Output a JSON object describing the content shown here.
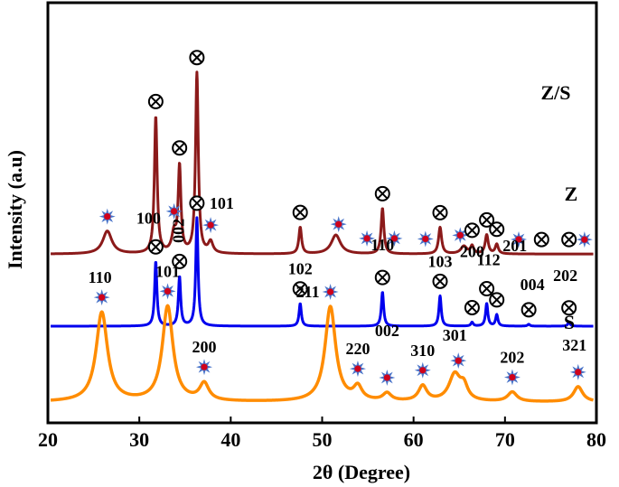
{
  "chart_data": {
    "type": "line",
    "title": "",
    "xlabel": "2θ (Degree)",
    "ylabel": "Intensity (a.u)",
    "xlim": [
      20,
      80
    ],
    "xticks": [
      20,
      30,
      40,
      50,
      60,
      70,
      80
    ],
    "grid": false,
    "legend": "series labels printed at right of each trace",
    "series": [
      {
        "name": "Z/S",
        "color": "#8b1a1a",
        "baseline": 0.78,
        "peaks": [
          {
            "x": 26.5,
            "h": 0.12,
            "w": 0.6
          },
          {
            "x": 31.8,
            "h": 0.72,
            "w": 0.18
          },
          {
            "x": 33.8,
            "h": 0.1,
            "w": 0.3
          },
          {
            "x": 34.4,
            "h": 0.45,
            "w": 0.18
          },
          {
            "x": 36.3,
            "h": 0.95,
            "w": 0.18
          },
          {
            "x": 37.8,
            "h": 0.06,
            "w": 0.3
          },
          {
            "x": 47.6,
            "h": 0.14,
            "w": 0.18
          },
          {
            "x": 51.5,
            "h": 0.1,
            "w": 0.6
          },
          {
            "x": 56.6,
            "h": 0.24,
            "w": 0.18
          },
          {
            "x": 62.9,
            "h": 0.14,
            "w": 0.2
          },
          {
            "x": 65.5,
            "h": 0.04,
            "w": 0.4
          },
          {
            "x": 66.4,
            "h": 0.04,
            "w": 0.2
          },
          {
            "x": 68.0,
            "h": 0.1,
            "w": 0.2
          },
          {
            "x": 69.1,
            "h": 0.05,
            "w": 0.2
          }
        ],
        "markers": [
          {
            "x": 26.5,
            "symbol": "star"
          },
          {
            "x": 31.8,
            "symbol": "otimes"
          },
          {
            "x": 33.8,
            "symbol": "star"
          },
          {
            "x": 34.4,
            "symbol": "otimes"
          },
          {
            "x": 36.3,
            "symbol": "otimes"
          },
          {
            "x": 37.8,
            "symbol": "star"
          },
          {
            "x": 47.6,
            "symbol": "otimes"
          },
          {
            "x": 51.8,
            "symbol": "star"
          },
          {
            "x": 54.9,
            "symbol": "star"
          },
          {
            "x": 56.6,
            "symbol": "otimes"
          },
          {
            "x": 57.9,
            "symbol": "star"
          },
          {
            "x": 61.3,
            "symbol": "star"
          },
          {
            "x": 62.9,
            "symbol": "otimes"
          },
          {
            "x": 65.1,
            "symbol": "star"
          },
          {
            "x": 66.4,
            "symbol": "otimes"
          },
          {
            "x": 68.0,
            "symbol": "otimes"
          },
          {
            "x": 69.1,
            "symbol": "otimes"
          },
          {
            "x": 71.5,
            "symbol": "star"
          },
          {
            "x": 74.0,
            "symbol": "otimes"
          },
          {
            "x": 77.0,
            "symbol": "otimes"
          },
          {
            "x": 78.7,
            "symbol": "star"
          }
        ]
      },
      {
        "name": "Z",
        "color": "#0000ee",
        "baseline": 0.4,
        "peaks": [
          {
            "x": 31.8,
            "h": 0.34,
            "w": 0.15
          },
          {
            "x": 34.4,
            "h": 0.26,
            "w": 0.15
          },
          {
            "x": 36.3,
            "h": 0.57,
            "w": 0.15
          },
          {
            "x": 47.6,
            "h": 0.12,
            "w": 0.15
          },
          {
            "x": 56.6,
            "h": 0.18,
            "w": 0.15
          },
          {
            "x": 62.9,
            "h": 0.16,
            "w": 0.15
          },
          {
            "x": 66.4,
            "h": 0.02,
            "w": 0.15
          },
          {
            "x": 68.0,
            "h": 0.12,
            "w": 0.15
          },
          {
            "x": 69.1,
            "h": 0.06,
            "w": 0.15
          },
          {
            "x": 72.6,
            "h": 0.01,
            "w": 0.15
          },
          {
            "x": 77.0,
            "h": 0.02,
            "w": 0.15
          }
        ],
        "markers": [
          {
            "x": 31.8,
            "symbol": "otimes",
            "label": "100"
          },
          {
            "x": 34.4,
            "symbol": "otimes",
            "label": "002"
          },
          {
            "x": 36.3,
            "symbol": "otimes",
            "label": "101"
          },
          {
            "x": 47.6,
            "symbol": "otimes",
            "label": "102"
          },
          {
            "x": 56.6,
            "symbol": "otimes",
            "label": "110"
          },
          {
            "x": 62.9,
            "symbol": "otimes",
            "label": "103"
          },
          {
            "x": 66.4,
            "symbol": "otimes",
            "label": "200"
          },
          {
            "x": 68.0,
            "symbol": "otimes",
            "label": "112"
          },
          {
            "x": 69.1,
            "symbol": "otimes",
            "label": "201"
          },
          {
            "x": 72.6,
            "symbol": "otimes",
            "label": "004"
          },
          {
            "x": 77.0,
            "symbol": "otimes",
            "label": "202"
          }
        ]
      },
      {
        "name": "S",
        "color": "#ff8c00",
        "baseline": 0.0,
        "peaks": [
          {
            "x": 25.9,
            "h": 0.47,
            "w": 0.75
          },
          {
            "x": 33.1,
            "h": 0.5,
            "w": 0.7
          },
          {
            "x": 37.1,
            "h": 0.09,
            "w": 0.6
          },
          {
            "x": 50.9,
            "h": 0.5,
            "w": 0.7
          },
          {
            "x": 53.9,
            "h": 0.07,
            "w": 0.55
          },
          {
            "x": 57.1,
            "h": 0.04,
            "w": 0.55
          },
          {
            "x": 61.0,
            "h": 0.08,
            "w": 0.55
          },
          {
            "x": 64.5,
            "h": 0.14,
            "w": 0.75
          },
          {
            "x": 65.5,
            "h": 0.07,
            "w": 0.5
          },
          {
            "x": 70.8,
            "h": 0.05,
            "w": 0.6
          },
          {
            "x": 78.0,
            "h": 0.08,
            "w": 0.6
          }
        ],
        "markers": [
          {
            "x": 25.9,
            "symbol": "star",
            "label": "110"
          },
          {
            "x": 33.1,
            "symbol": "star",
            "label": "101"
          },
          {
            "x": 37.1,
            "symbol": "star",
            "label": "200"
          },
          {
            "x": 50.9,
            "symbol": "star",
            "label": "211"
          },
          {
            "x": 53.9,
            "symbol": "star",
            "label": "220"
          },
          {
            "x": 57.1,
            "symbol": "star",
            "label": "002"
          },
          {
            "x": 61.0,
            "symbol": "star",
            "label": "310"
          },
          {
            "x": 64.9,
            "symbol": "star",
            "label": "301"
          },
          {
            "x": 70.8,
            "symbol": "star",
            "label": "202"
          },
          {
            "x": 78.0,
            "symbol": "star",
            "label": "321"
          }
        ]
      }
    ]
  }
}
